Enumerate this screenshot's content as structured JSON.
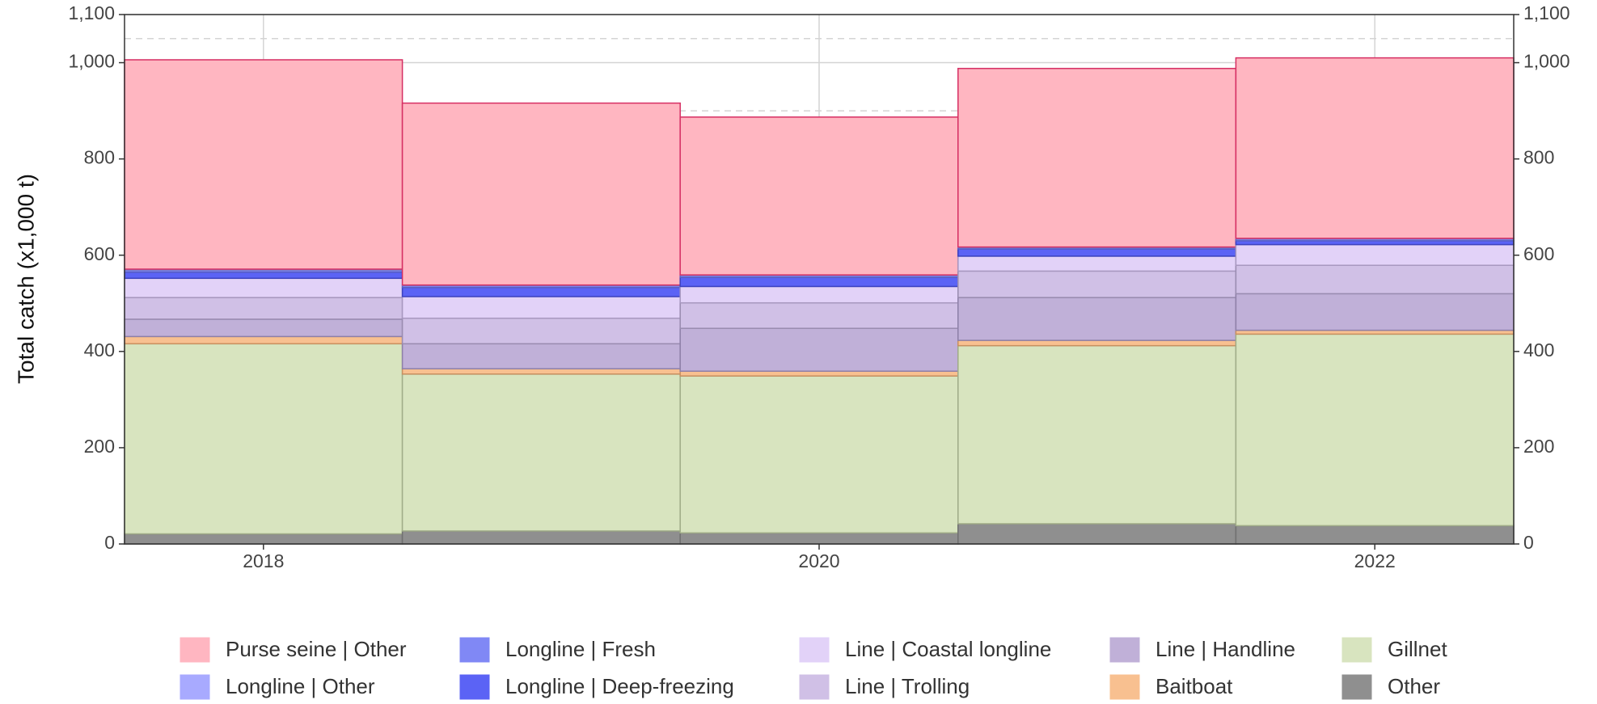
{
  "chart_data": {
    "type": "stacked_bar",
    "y_label": "Total catch (x1,000 t)",
    "x": [
      2018,
      2019,
      2020,
      2021,
      2022
    ],
    "xlim": [
      2017.5,
      2022.5
    ],
    "xticks": [
      2018,
      2020,
      2022
    ],
    "ylim": [
      0,
      1100
    ],
    "yticks": [
      0,
      200,
      400,
      600,
      800,
      {
        "value": 1000,
        "label": "1,000"
      },
      {
        "value": 1100,
        "label": "1,100"
      }
    ],
    "y2lim": [
      0,
      1100
    ],
    "y2ticks": [
      0,
      200,
      400,
      600,
      800,
      {
        "value": 1000,
        "label": "1,000"
      },
      {
        "value": 1100,
        "label": "1,100"
      }
    ],
    "grid": true,
    "legend": "bottom",
    "series": [
      {
        "name": "Purse seine | Other",
        "color": "#ffb6c1",
        "edge": "#d62f63",
        "values": [
          435,
          378,
          328,
          371,
          375
        ]
      },
      {
        "name": "Longline | Other",
        "color": "#a8aaff",
        "edge": "#7a7ccc",
        "values": [
          2,
          1,
          1,
          1,
          1
        ]
      },
      {
        "name": "Longline | Fresh",
        "color": "#8088f5",
        "edge": "#5a60c0",
        "values": [
          4,
          4,
          4,
          3,
          4
        ]
      },
      {
        "name": "Longline | Deep-freezing",
        "color": "#5b63f5",
        "edge": "#3c42c0",
        "values": [
          13,
          19,
          19,
          15,
          8
        ]
      },
      {
        "name": "Line | Coastal longline",
        "color": "#e2d2f8",
        "edge": "#a898c0",
        "values": [
          40,
          45,
          34,
          31,
          43
        ]
      },
      {
        "name": "Line | Trolling",
        "color": "#d0c0e6",
        "edge": "#9a8cb0",
        "values": [
          45,
          53,
          53,
          55,
          59
        ]
      },
      {
        "name": "Line | Handline",
        "color": "#c0b0d8",
        "edge": "#8e80a8",
        "values": [
          36,
          52,
          89,
          89,
          76
        ]
      },
      {
        "name": "Baitboat",
        "color": "#f8c090",
        "edge": "#c89060",
        "values": [
          15,
          11,
          10,
          11,
          8
        ]
      },
      {
        "name": "Gillnet",
        "color": "#d8e4bf",
        "edge": "#a0ac88",
        "values": [
          395,
          326,
          326,
          370,
          398
        ]
      },
      {
        "name": "Other",
        "color": "#8f8f8f",
        "edge": "#707070",
        "values": [
          21,
          27,
          23,
          42,
          38
        ]
      }
    ]
  }
}
